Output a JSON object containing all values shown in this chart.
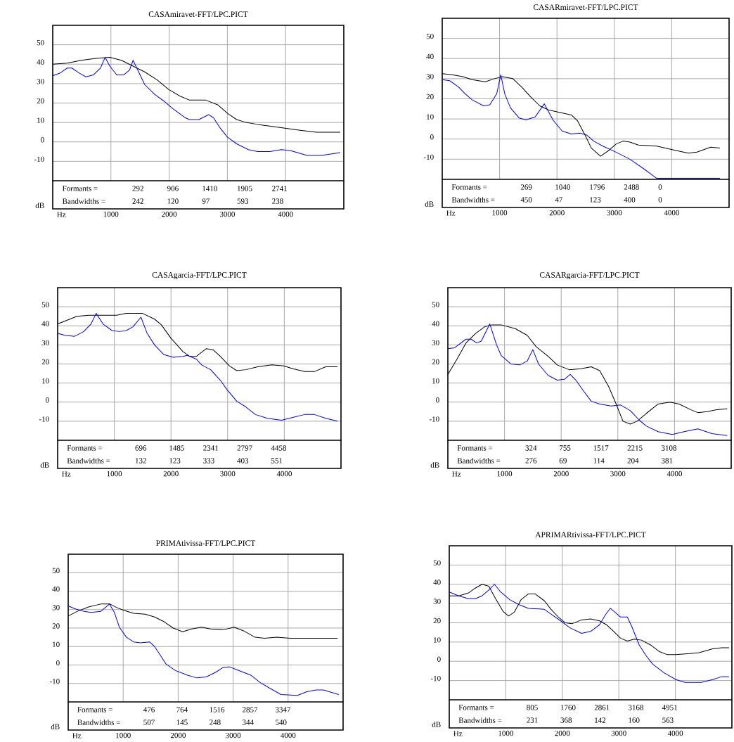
{
  "chart_data": [
    {
      "type": "line",
      "title": "CASAmiravet-FFT/LPC.PICT",
      "xlabel": "Hz",
      "ylabel": "dB",
      "xlim": [
        0,
        5000
      ],
      "ylim": [
        -20,
        60
      ],
      "xticks": [
        1000,
        2000,
        3000,
        4000
      ],
      "yticks": [
        -10,
        0,
        10,
        20,
        30,
        40,
        50
      ],
      "grid": true,
      "annotations": [
        "Formants =",
        "292",
        "906",
        "1410",
        "1905",
        "2741",
        "Bandwidths =",
        "242",
        "120",
        "97",
        "593",
        "238"
      ],
      "series": [
        {
          "color": "#000000",
          "x": [
            0,
            250,
            490,
            740,
            980,
            1180,
            1380,
            1580,
            1790,
            1990,
            2190,
            2350,
            2630,
            2840,
            3010,
            3160,
            3320,
            3520,
            3770,
            4010,
            4250,
            4530,
            4940
          ],
          "values": [
            40,
            40.5,
            42,
            43,
            43.5,
            42,
            39,
            36,
            32,
            27,
            23.5,
            21.5,
            21.5,
            19,
            14.5,
            11.5,
            10,
            9,
            8,
            7,
            6,
            5,
            5
          ]
        },
        {
          "color": "#0000ff",
          "x": [
            0,
            130,
            250,
            330,
            450,
            570,
            700,
            820,
            900,
            980,
            1100,
            1220,
            1320,
            1380,
            1460,
            1580,
            1750,
            1910,
            2070,
            2270,
            2350,
            2510,
            2680,
            2760,
            2880,
            3000,
            3160,
            3360,
            3520,
            3730,
            3930,
            4090,
            4370,
            4610,
            4940
          ],
          "values": [
            34,
            35.5,
            38,
            38,
            35.5,
            33.5,
            34.5,
            38,
            43.5,
            39,
            34.5,
            34.5,
            37,
            42,
            37,
            29.5,
            24.5,
            21,
            17,
            12.5,
            11.5,
            11.5,
            14,
            12.5,
            7,
            2.5,
            -1,
            -4,
            -5,
            -5,
            -4,
            -4.5,
            -7,
            -7,
            -5.5
          ]
        }
      ]
    },
    {
      "type": "line",
      "title": "CASARmiravet-FFT/LPC.PICT",
      "xlabel": "Hz",
      "ylabel": "dB",
      "xlim": [
        0,
        5000
      ],
      "ylim": [
        -20,
        60
      ],
      "xticks": [
        1000,
        2000,
        3000,
        4000
      ],
      "yticks": [
        -10,
        0,
        10,
        20,
        30,
        40,
        50
      ],
      "grid": true,
      "annotations": [
        "Formants =",
        "269",
        "1040",
        "1796",
        "2488",
        "0",
        "Bandwidths =",
        "450",
        "47",
        "123",
        "400",
        "0"
      ],
      "series": [
        {
          "color": "#000000",
          "x": [
            0,
            170,
            360,
            520,
            750,
            910,
            1050,
            1230,
            1380,
            1540,
            1700,
            1850,
            2090,
            2250,
            2360,
            2480,
            2600,
            2760,
            2910,
            3030,
            3150,
            3270,
            3420,
            3740,
            4050,
            4290,
            4440,
            4680,
            4840
          ],
          "values": [
            32.5,
            32,
            31,
            29.5,
            28.5,
            30,
            31,
            30,
            26,
            21,
            16.5,
            14.5,
            13,
            12,
            9,
            2.5,
            -4.5,
            -8.5,
            -5.5,
            -2.5,
            -1,
            -1.5,
            -3,
            -3.5,
            -5.5,
            -7,
            -6.5,
            -4,
            -4.5
          ]
        },
        {
          "color": "#0000ff",
          "x": [
            0,
            130,
            280,
            400,
            520,
            720,
            830,
            950,
            1020,
            1090,
            1190,
            1340,
            1460,
            1620,
            1780,
            1930,
            2090,
            2250,
            2400,
            2520,
            2640,
            2800,
            3030,
            3270,
            3500,
            3740,
            4840
          ],
          "values": [
            29.5,
            29,
            26,
            22.5,
            19.5,
            16.5,
            17,
            22.5,
            32,
            22.5,
            15.5,
            10.5,
            9.5,
            11,
            17.5,
            9.5,
            4,
            2.5,
            3,
            2,
            -1,
            -3.5,
            -6.5,
            -10,
            -14.5,
            -19.5,
            -19.5
          ]
        }
      ]
    },
    {
      "type": "line",
      "title": "CASAgarcia-FFT/LPC.PICT",
      "xlabel": "Hz",
      "ylabel": "dB",
      "xlim": [
        0,
        5000
      ],
      "ylim": [
        -20,
        60
      ],
      "xticks": [
        1000,
        2000,
        3000,
        4000
      ],
      "yticks": [
        -10,
        0,
        10,
        20,
        30,
        40,
        50
      ],
      "grid": true,
      "annotations": [
        "Formants =",
        "696",
        "1485",
        "2341",
        "2797",
        "4458",
        "Bandwidths =",
        "132",
        "123",
        "333",
        "403",
        "551"
      ],
      "series": [
        {
          "color": "#000000",
          "x": [
            0,
            130,
            340,
            550,
            750,
            1040,
            1210,
            1500,
            1710,
            1830,
            2000,
            2210,
            2330,
            2450,
            2620,
            2740,
            2870,
            3030,
            3160,
            3320,
            3530,
            3780,
            3990,
            4150,
            4360,
            4530,
            4730,
            4940
          ],
          "values": [
            41,
            42.5,
            45,
            45.5,
            45.5,
            45.5,
            46.5,
            46.5,
            43.5,
            40.5,
            33.5,
            26.5,
            24,
            24,
            28,
            27.5,
            24,
            19,
            16.5,
            17,
            18.5,
            19.5,
            19,
            17.5,
            16,
            16,
            18.5,
            18.5
          ]
        },
        {
          "color": "#0000ff",
          "x": [
            0,
            130,
            300,
            460,
            590,
            680,
            800,
            960,
            1090,
            1210,
            1330,
            1470,
            1580,
            1710,
            1870,
            2040,
            2210,
            2290,
            2450,
            2540,
            2700,
            2870,
            2990,
            3160,
            3320,
            3490,
            3700,
            3950,
            4150,
            4360,
            4530,
            4730,
            4940
          ],
          "values": [
            36,
            35,
            34.5,
            37,
            41,
            46.5,
            41,
            37.5,
            37,
            37.5,
            39.5,
            44.5,
            36,
            30,
            25,
            23.5,
            24,
            24.5,
            22.5,
            19.5,
            17,
            11.5,
            6.5,
            0.5,
            -2.5,
            -6.5,
            -8.5,
            -9.5,
            -8,
            -6.5,
            -6.5,
            -8.5,
            -10
          ]
        }
      ]
    },
    {
      "type": "line",
      "title": "CASARgarcia-FFT/LPC.PICT",
      "xlabel": "Hz",
      "ylabel": "dB",
      "xlim": [
        0,
        5000
      ],
      "ylim": [
        -20,
        60
      ],
      "xticks": [
        1000,
        2000,
        3000,
        4000
      ],
      "yticks": [
        -10,
        0,
        10,
        20,
        30,
        40,
        50
      ],
      "grid": true,
      "annotations": [
        "Formants =",
        "324",
        "755",
        "1517",
        "2215",
        "3108",
        "Bandwidths =",
        "276",
        "69",
        "114",
        "204",
        "381"
      ],
      "series": [
        {
          "color": "#000000",
          "x": [
            0,
            160,
            320,
            490,
            650,
            780,
            940,
            1190,
            1400,
            1560,
            1770,
            1930,
            2140,
            2350,
            2530,
            2680,
            2840,
            2970,
            3090,
            3220,
            3340,
            3500,
            3710,
            3920,
            4080,
            4290,
            4410,
            4580,
            4740,
            4930
          ],
          "values": [
            14.5,
            22.5,
            31,
            36,
            39.5,
            40.5,
            40.5,
            38.5,
            35,
            29,
            24,
            19.5,
            17,
            17.5,
            18.5,
            16.5,
            8,
            -1,
            -10,
            -11.5,
            -10,
            -6,
            -1,
            0,
            -1,
            -4,
            -5.5,
            -5,
            -4,
            -3.5
          ]
        },
        {
          "color": "#0000ff",
          "x": [
            0,
            120,
            320,
            410,
            510,
            590,
            740,
            860,
            940,
            1110,
            1270,
            1400,
            1500,
            1600,
            1770,
            1930,
            2060,
            2160,
            2260,
            2390,
            2530,
            2680,
            2880,
            3050,
            3220,
            3380,
            3500,
            3710,
            3960,
            4170,
            4410,
            4660,
            4930
          ],
          "values": [
            28,
            28.5,
            33,
            33,
            31,
            32,
            41,
            30,
            24.5,
            20,
            19.5,
            21.5,
            27.5,
            20,
            14,
            11.5,
            12,
            14.5,
            11.5,
            6,
            0.5,
            -1,
            -2,
            -1.5,
            -4.5,
            -9.5,
            -12.5,
            -15.5,
            -17,
            -15.5,
            -14,
            -16.5,
            -17.5
          ]
        }
      ]
    },
    {
      "type": "line",
      "title": "PRIMAtivissa-FFT/LPC.PICT",
      "xlabel": "Hz",
      "ylabel": "dB",
      "xlim": [
        0,
        5000
      ],
      "ylim": [
        -20,
        60
      ],
      "xticks": [
        1000,
        2000,
        3000,
        4000
      ],
      "yticks": [
        -10,
        0,
        10,
        20,
        30,
        40,
        50
      ],
      "grid": true,
      "annotations": [
        "Formants =",
        "476",
        "764",
        "1516",
        "2857",
        "3347",
        "Bandwidths =",
        "507",
        "145",
        "248",
        "344",
        "540"
      ],
      "series": [
        {
          "color": "#000000",
          "x": [
            0,
            160,
            380,
            590,
            760,
            890,
            1020,
            1190,
            1400,
            1570,
            1740,
            1910,
            2080,
            2250,
            2420,
            2590,
            2810,
            3020,
            3190,
            3400,
            3570,
            3790,
            4040,
            4640,
            4900
          ],
          "values": [
            26.5,
            29,
            31.5,
            33,
            33,
            31,
            29.5,
            28,
            27.5,
            26,
            23.5,
            20,
            18,
            19.5,
            20.5,
            19.5,
            19,
            20.5,
            18.5,
            15,
            14.5,
            15,
            14.5,
            14.5,
            14.5
          ]
        },
        {
          "color": "#0000ff",
          "x": [
            0,
            120,
            290,
            420,
            590,
            670,
            750,
            840,
            930,
            1060,
            1190,
            1310,
            1480,
            1570,
            1660,
            1780,
            1950,
            2170,
            2340,
            2510,
            2680,
            2810,
            2930,
            3060,
            3320,
            3490,
            3660,
            3870,
            4170,
            4340,
            4510,
            4640,
            4920
          ],
          "values": [
            32,
            30.5,
            29,
            28.5,
            29,
            31,
            33,
            28.5,
            20.5,
            15,
            12.5,
            12,
            12.5,
            10,
            6,
            0.5,
            -3,
            -5.5,
            -7,
            -6.5,
            -4,
            -1.5,
            -1,
            -2.5,
            -5.5,
            -9.5,
            -12.5,
            -16,
            -16.5,
            -14.5,
            -13.5,
            -13.5,
            -16
          ]
        }
      ]
    },
    {
      "type": "line",
      "title": "APRIMARtivissa-FFT/LPC.PICT",
      "xlabel": "Hz",
      "ylabel": "dB",
      "xlim": [
        0,
        5000
      ],
      "ylim": [
        -20,
        60
      ],
      "xticks": [
        1000,
        2000,
        3000,
        4000
      ],
      "yticks": [
        -10,
        0,
        10,
        20,
        30,
        40,
        50
      ],
      "grid": true,
      "annotations": [
        "Formants =",
        "805",
        "1760",
        "2861",
        "3168",
        "4951",
        "Bandwidths =",
        "231",
        "368",
        "142",
        "160",
        "563"
      ],
      "series": [
        {
          "color": "#000000",
          "x": [
            0,
            170,
            340,
            460,
            580,
            700,
            820,
            950,
            1050,
            1150,
            1270,
            1400,
            1520,
            1680,
            1800,
            1930,
            2050,
            2170,
            2340,
            2500,
            2660,
            2780,
            2910,
            3030,
            3150,
            3270,
            3400,
            3560,
            3720,
            3850,
            4010,
            4250,
            4420,
            4660,
            4820,
            4950
          ],
          "values": [
            34,
            34,
            35.5,
            38,
            40,
            39,
            32.5,
            26,
            23.5,
            25.5,
            32,
            35,
            35,
            31.5,
            27,
            23,
            20,
            19.5,
            21.5,
            22,
            21,
            19,
            15.5,
            12,
            10.5,
            11.5,
            11,
            8.5,
            5,
            3.5,
            3.5,
            4,
            4.5,
            6.5,
            7,
            7
          ]
        },
        {
          "color": "#0000ff",
          "x": [
            0,
            170,
            340,
            460,
            580,
            700,
            800,
            910,
            1070,
            1230,
            1400,
            1680,
            1800,
            1970,
            2130,
            2340,
            2500,
            2660,
            2760,
            2850,
            2930,
            3030,
            3150,
            3230,
            3360,
            3480,
            3600,
            3800,
            4010,
            4170,
            4460,
            4660,
            4820,
            4950
          ],
          "values": [
            36,
            34,
            32.5,
            32.5,
            34,
            37,
            40,
            36,
            32,
            29.5,
            27.5,
            27,
            24.5,
            21,
            17.5,
            14.5,
            15.5,
            19,
            24,
            27.5,
            25.5,
            23,
            23,
            18,
            8.5,
            3,
            -1.5,
            -6,
            -9.5,
            -11,
            -11,
            -9.5,
            -8,
            -8
          ]
        }
      ]
    }
  ]
}
